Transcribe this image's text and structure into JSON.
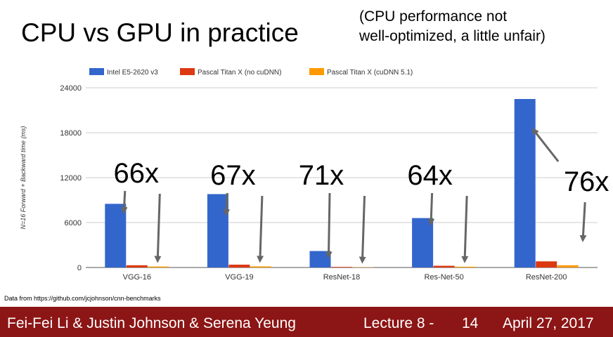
{
  "slide": {
    "title": "CPU vs GPU in practice",
    "note_line1": "(CPU performance not",
    "note_line2": "well-optimized, a little unfair)",
    "source": "Data from https://github.com/jcjohnson/cnn-benchmarks"
  },
  "footer": {
    "authors": "Fei-Fei Li & Justin Johnson & Serena Yeung",
    "lecture": "Lecture 8 -",
    "page": "14",
    "date": "April 27, 2017",
    "bg_color": "#8c1515"
  },
  "chart_data": {
    "type": "bar",
    "title": "",
    "xlabel": "",
    "ylabel": "N=16 Forward + Backward time (ms)",
    "ylim": [
      0,
      24000
    ],
    "yticks": [
      0,
      6000,
      12000,
      18000,
      24000
    ],
    "grid": true,
    "legend_position": "top",
    "categories": [
      "VGG-16",
      "VGG-19",
      "ResNet-18",
      "Res-Net-50",
      "ResNet-200"
    ],
    "series": [
      {
        "name": "Intel E5-2620 v3",
        "color": "#3366cc",
        "values": [
          8500,
          9800,
          2200,
          6600,
          22500
        ]
      },
      {
        "name": "Pascal Titan X (no cuDNN)",
        "color": "#dc3912",
        "values": [
          300,
          380,
          80,
          230,
          820
        ]
      },
      {
        "name": "Pascal Titan X (cuDNN 5.1)",
        "color": "#ff9900",
        "values": [
          128,
          148,
          31,
          104,
          296
        ]
      }
    ],
    "annotations": [
      "66x",
      "67x",
      "71x",
      "64x",
      "76x"
    ]
  }
}
